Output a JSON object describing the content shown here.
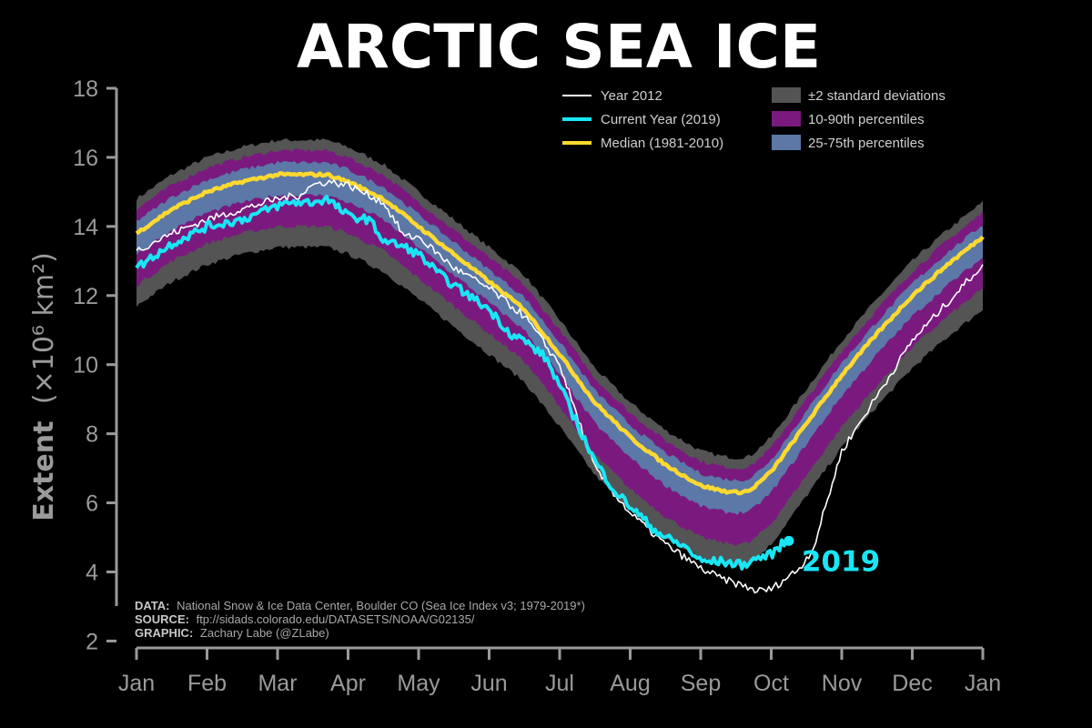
{
  "chart_data": {
    "type": "line",
    "title": "ARCTIC SEA ICE",
    "ylabel": "Extent",
    "ylabel_unit": "(×10⁶ km²)",
    "ylim": [
      1.8,
      18
    ],
    "yticks": [
      2,
      4,
      6,
      8,
      10,
      12,
      14,
      16,
      18
    ],
    "xticks": [
      "Jan",
      "Feb",
      "Mar",
      "Apr",
      "May",
      "Jun",
      "Jul",
      "Aug",
      "Sep",
      "Oct",
      "Nov",
      "Dec",
      "Jan"
    ],
    "x_unit": "month (0 = Jan 1, 12 = next Jan 1)",
    "colors": {
      "std": "#545454",
      "p10_90": "#7a1a7f",
      "p25_75": "#5b78a7",
      "median": "#ffd92f",
      "current": "#19e6f5",
      "year2012": "#ffffff"
    },
    "legend": [
      {
        "key": "y2012",
        "label": "Year 2012",
        "type": "line",
        "color": "#ffffff"
      },
      {
        "key": "current",
        "label": "Current Year (2019)",
        "type": "line",
        "color": "#19e6f5"
      },
      {
        "key": "median",
        "label": "Median (1981-2010)",
        "type": "line",
        "color": "#ffd92f"
      },
      {
        "key": "std",
        "label": "±2 standard deviations",
        "type": "patch",
        "color": "#545454"
      },
      {
        "key": "p10",
        "label": "10-90th percentiles",
        "type": "patch",
        "color": "#7a1a7f"
      },
      {
        "key": "p25",
        "label": "25-75th percentiles",
        "type": "patch",
        "color": "#5b78a7"
      }
    ],
    "series": [
      {
        "name": "Median (1981-2010)",
        "x": [
          0,
          0.5,
          1,
          1.5,
          2,
          2.3,
          2.7,
          3,
          3.5,
          4,
          4.5,
          5,
          5.5,
          6,
          6.5,
          7,
          7.5,
          8,
          8.3,
          8.5,
          8.7,
          9,
          9.5,
          10,
          10.5,
          11,
          11.5,
          12
        ],
        "values": [
          13.8,
          14.5,
          15,
          15.3,
          15.5,
          15.5,
          15.5,
          15.3,
          14.8,
          14,
          13.2,
          12.4,
          11.6,
          10.3,
          8.9,
          7.9,
          7.1,
          6.5,
          6.35,
          6.3,
          6.35,
          6.9,
          8.3,
          9.7,
          10.9,
          12,
          12.9,
          13.7
        ]
      },
      {
        "name": "Year 2012",
        "x": [
          0,
          0.5,
          1,
          1.5,
          2,
          2.3,
          2.5,
          2.7,
          3,
          3.5,
          3.8,
          4,
          4.5,
          5,
          5.5,
          6,
          6.3,
          6.5,
          6.8,
          7,
          7.5,
          8,
          8.3,
          8.6,
          8.8,
          9,
          9.2,
          9.4,
          9.6,
          10,
          10.5,
          11,
          11.5,
          12
        ],
        "values": [
          13.3,
          13.8,
          14.2,
          14.5,
          14.8,
          14.9,
          15.2,
          15.3,
          15.2,
          14.7,
          13.7,
          13.7,
          12.8,
          12.2,
          11.4,
          10,
          8.2,
          7,
          6.2,
          5.7,
          4.8,
          4.1,
          3.8,
          3.6,
          3.45,
          3.5,
          3.8,
          4.1,
          4.7,
          7.5,
          9.1,
          10.7,
          11.8,
          12.9
        ]
      },
      {
        "name": "Current Year (2019)",
        "x": [
          0,
          0.5,
          1,
          1.5,
          2,
          2.2,
          2.5,
          2.7,
          3,
          3.3,
          3.5,
          3.8,
          4,
          4.3,
          4.5,
          5,
          5.3,
          5.5,
          5.8,
          6,
          6.2,
          6.5,
          6.8,
          7,
          7.3,
          7.5,
          7.8,
          8,
          8.3,
          8.6,
          8.8,
          9,
          9.15,
          9.25
        ],
        "values": [
          12.8,
          13.5,
          14,
          14.2,
          14.6,
          14.7,
          14.7,
          14.8,
          14.3,
          14.2,
          13.6,
          13.4,
          13.2,
          12.6,
          12.3,
          11.6,
          10.9,
          10.7,
          10.2,
          9.4,
          8.5,
          7.2,
          6.3,
          5.9,
          5.3,
          5,
          4.7,
          4.3,
          4.3,
          4.2,
          4.4,
          4.5,
          4.8,
          4.9
        ]
      }
    ],
    "bands": [
      {
        "name": "±2 standard deviations",
        "lower_offset_from_median": -2.1,
        "upper_offset_from_median": 1.0
      },
      {
        "name": "10-90th percentiles",
        "lower_offset_from_median": -1.5,
        "upper_offset_from_median": 0.7
      },
      {
        "name": "25-75th percentiles",
        "lower_offset_from_median": -0.6,
        "upper_offset_from_median": 0.35
      }
    ],
    "end_annotation": "2019"
  },
  "credits": {
    "data_label": "DATA:",
    "data_text": "National Snow & Ice Data Center, Boulder CO (Sea Ice Index v3; 1979-2019*)",
    "source_label": "SOURCE:",
    "source_text": "ftp://sidads.colorado.edu/DATASETS/NOAA/G02135/",
    "graphic_label": "GRAPHIC:",
    "graphic_text": "Zachary Labe (@ZLabe)"
  }
}
